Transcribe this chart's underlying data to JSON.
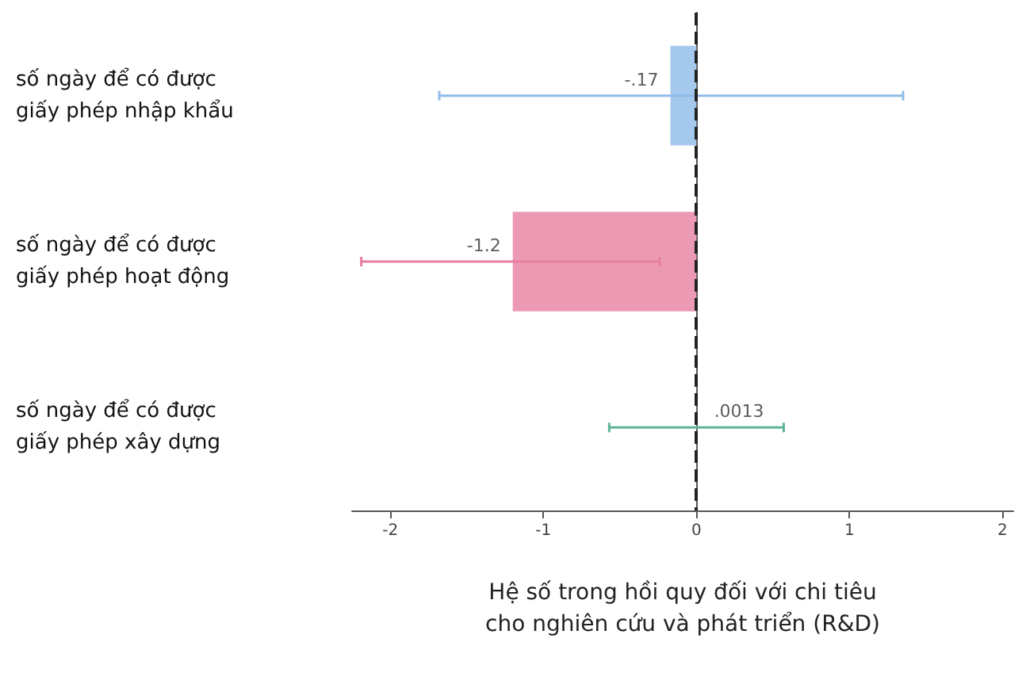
{
  "chart_data": {
    "type": "bar",
    "orientation": "horizontal",
    "categories": [
      "số ngày để có được\ngiấy phép nhập khẩu",
      "số ngày để có được\ngiấy phép hoạt động",
      "số ngày để có được\ngiấy phép xây dựng"
    ],
    "values": [
      -0.17,
      -1.2,
      0.0013
    ],
    "colors": [
      "#8fbbe8",
      "#e77fa0",
      "#5db596"
    ],
    "errors": [
      [
        -1.68,
        1.35
      ],
      [
        -2.19,
        -0.24
      ],
      [
        -0.57,
        0.57
      ]
    ],
    "value_labels": [
      "-.17",
      "-1.2",
      ".0013"
    ],
    "xlim": [
      -2.25,
      2.07
    ],
    "xticks": [
      -2,
      -1,
      0,
      1,
      2
    ],
    "xlabel": "Hệ số trong hồi quy đối với chi tiêu\ncho nghiên cứu và phát triển (R&D)",
    "ref_lines": [
      {
        "axis": "x",
        "value": 0,
        "color": "#222222",
        "line_style": "dashed"
      }
    ],
    "grid": false
  }
}
